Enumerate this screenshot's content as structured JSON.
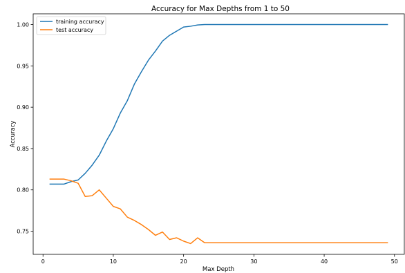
{
  "chart_data": {
    "type": "line",
    "title": "Accuracy for Max Depths from 1 to 50",
    "xlabel": "Max Depth",
    "ylabel": "Accuracy",
    "xlim": [
      -1.4,
      51.4
    ],
    "ylim": [
      0.722,
      1.013
    ],
    "xticks": [
      0,
      10,
      20,
      30,
      40,
      50
    ],
    "yticks": [
      0.75,
      0.8,
      0.85,
      0.9,
      0.95,
      1.0
    ],
    "ytick_labels": [
      "0.75",
      "0.80",
      "0.85",
      "0.90",
      "0.95",
      "1.00"
    ],
    "grid": false,
    "legend_position": "top-left",
    "x": [
      1,
      2,
      3,
      4,
      5,
      6,
      7,
      8,
      9,
      10,
      11,
      12,
      13,
      14,
      15,
      16,
      17,
      18,
      19,
      20,
      21,
      22,
      23,
      24,
      25,
      26,
      27,
      28,
      29,
      30,
      31,
      32,
      33,
      34,
      35,
      36,
      37,
      38,
      39,
      40,
      41,
      42,
      43,
      44,
      45,
      46,
      47,
      48,
      49
    ],
    "series": [
      {
        "name": "training accuracy",
        "color": "#1f77b4",
        "values": [
          0.807,
          0.807,
          0.807,
          0.81,
          0.812,
          0.82,
          0.83,
          0.842,
          0.859,
          0.874,
          0.893,
          0.908,
          0.928,
          0.943,
          0.957,
          0.968,
          0.98,
          0.987,
          0.992,
          0.997,
          0.998,
          0.9995,
          1.0,
          1.0,
          1.0,
          1.0,
          1.0,
          1.0,
          1.0,
          1.0,
          1.0,
          1.0,
          1.0,
          1.0,
          1.0,
          1.0,
          1.0,
          1.0,
          1.0,
          1.0,
          1.0,
          1.0,
          1.0,
          1.0,
          1.0,
          1.0,
          1.0,
          1.0,
          1.0
        ]
      },
      {
        "name": "test accuracy",
        "color": "#ff7f0e",
        "values": [
          0.813,
          0.813,
          0.813,
          0.811,
          0.808,
          0.792,
          0.793,
          0.8,
          0.79,
          0.78,
          0.777,
          0.767,
          0.763,
          0.758,
          0.752,
          0.745,
          0.749,
          0.74,
          0.742,
          0.738,
          0.735,
          0.742,
          0.736,
          0.736,
          0.736,
          0.736,
          0.736,
          0.736,
          0.736,
          0.736,
          0.736,
          0.736,
          0.736,
          0.736,
          0.736,
          0.736,
          0.736,
          0.736,
          0.736,
          0.736,
          0.736,
          0.736,
          0.736,
          0.736,
          0.736,
          0.736,
          0.736,
          0.736,
          0.736
        ]
      }
    ]
  }
}
